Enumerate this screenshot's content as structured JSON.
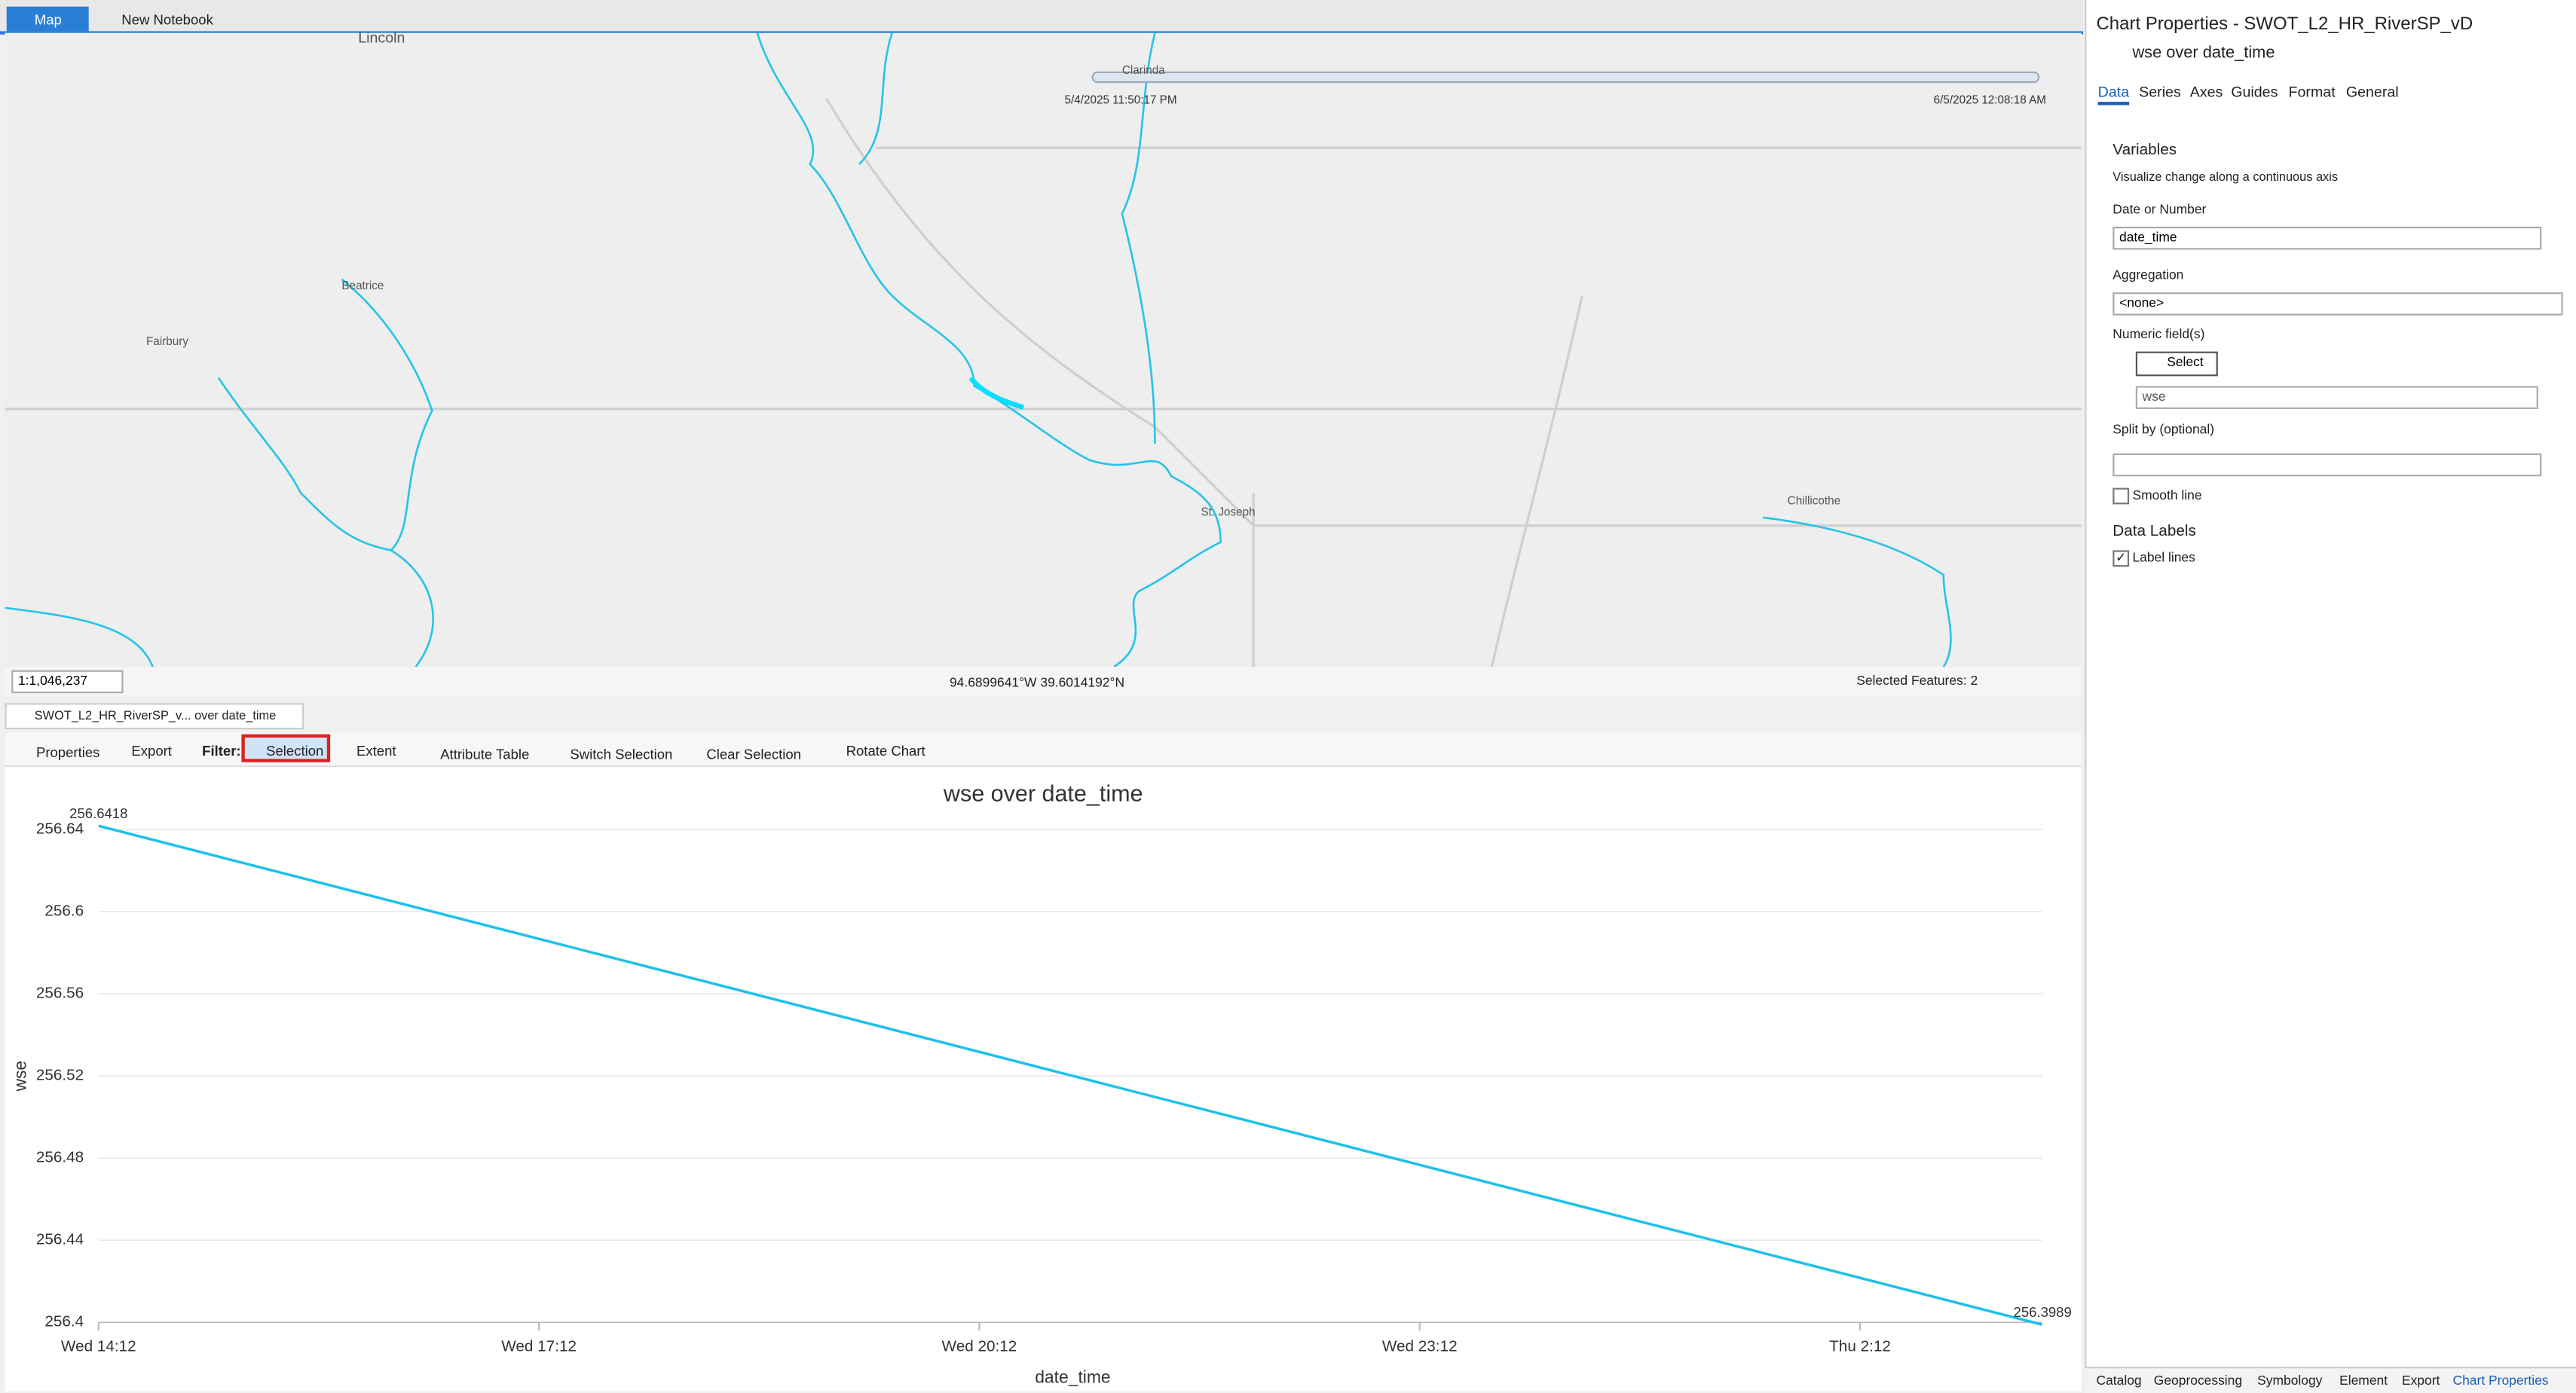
{
  "tabs": [
    "Map",
    "New Notebook"
  ],
  "map": {
    "labels": [
      "Lincoln",
      "Beatrice",
      "Fairbury",
      "Clarinda",
      "St. Joseph",
      "Chillicothe"
    ],
    "time_start": "5/4/2025 11:50:17 PM",
    "time_end": "6/5/2025 12:08:18 AM",
    "scale": "1:1,046,237",
    "coordinates": "94.6899641°W 39.6014192°N",
    "selected": "Selected Features: 2"
  },
  "chart_view": {
    "tab": "SWOT_L2_HR_RiverSP_v... over date_time",
    "toolbar": [
      "Properties",
      "Export",
      "Filter:",
      "Selection",
      "Extent",
      "Attribute Table",
      "Switch Selection",
      "Clear Selection",
      "Rotate Chart"
    ]
  },
  "chart_data": {
    "type": "line",
    "title": "wse over date_time",
    "x_label": "date_time",
    "y_label": "wse",
    "x": [
      14.2,
      27.44
    ],
    "values": [
      256.6418,
      256.3989
    ],
    "color": "#1ec0ec",
    "xlim": [
      14.2,
      27.44
    ],
    "xticks": [
      {
        "value": 14.2,
        "label": "Wed 14:12"
      },
      {
        "value": 17.2,
        "label": "Wed 17:12"
      },
      {
        "value": 20.2,
        "label": "Wed 20:12"
      },
      {
        "value": 23.2,
        "label": "Wed 23:12"
      },
      {
        "value": 26.2,
        "label": "Thu 2:12"
      }
    ],
    "ylim": [
      256.4,
      256.64
    ],
    "yticks": [
      256.4,
      256.44,
      256.48,
      256.52,
      256.56,
      256.6,
      256.64
    ],
    "grid": true,
    "data_labels": true
  },
  "properties": {
    "title": "Chart Properties - SWOT_L2_HR_RiverSP_vD",
    "chart_name": "wse over date_time",
    "tabs": [
      "Data",
      "Series",
      "Axes",
      "Guides",
      "Format",
      "General"
    ],
    "variables": "Variables",
    "variables_hint": "Visualize change along a continuous axis",
    "date_label": "Date or Number",
    "date_value": "date_time",
    "aggregation_label": "Aggregation",
    "aggregation_value": "<none>",
    "numeric_label": "Numeric field(s)",
    "select_button": "Select",
    "numeric_value": "wse",
    "split_label": "Split by (optional)",
    "smooth_line": "Smooth line",
    "data_labels": "Data Labels",
    "label_lines": "Label lines"
  },
  "bottom_tabs": [
    "Catalog",
    "Geoprocessing",
    "Symbology",
    "Element",
    "Export",
    "Chart Properties"
  ]
}
